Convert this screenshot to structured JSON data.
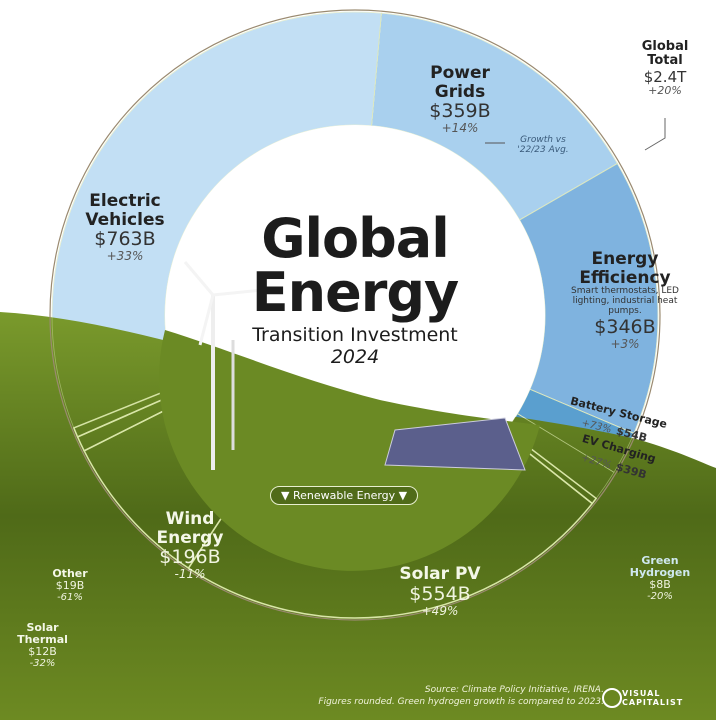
{
  "chart_data": {
    "type": "pie",
    "title": "Global Energy",
    "subtitle": "Transition Investment",
    "year": "2024",
    "categories": [
      "Power Grids",
      "Energy Efficiency",
      "Battery Storage",
      "EV Charging",
      "Green Hydrogen",
      "Solar PV",
      "Wind Energy",
      "Other",
      "Solar Thermal",
      "Electric Vehicles"
    ],
    "values": [
      359,
      346,
      54,
      39,
      8,
      554,
      196,
      19,
      12,
      763
    ],
    "value_labels": [
      "$359B",
      "$346B",
      "$54B",
      "$39B",
      "$8B",
      "$554B",
      "$196B",
      "$19B",
      "$12B",
      "$763B"
    ],
    "growth_labels": [
      "+14%",
      "+3%",
      "+73%",
      "+27%",
      "-20%",
      "+49%",
      "-11%",
      "-61%",
      "-32%",
      "+33%"
    ],
    "colors": [
      "#a9d0ee",
      "#7fb3df",
      "#5a9fcf",
      "#4a8fb8",
      "#9acb5a",
      "#5d7d1c",
      "#5d7d1c",
      "#5d7d1c",
      "#5d7d1c",
      "#c2dff4"
    ],
    "energy_efficiency_note": "Smart thermostats, LED lighting, industrial heat pumps.",
    "growth_note": "Growth vs '22/23 Avg.",
    "global_total": {
      "label": "Global Total",
      "value": "$2.4T",
      "growth": "+20%"
    },
    "group_label": "▼ Renewable Energy ▼"
  },
  "source": "Source: Climate Policy Initiative, IRENA.",
  "footnote": "Figures rounded. Green hydrogen growth is compared to 2023.",
  "brand": "VISUAL CAPITALIST"
}
